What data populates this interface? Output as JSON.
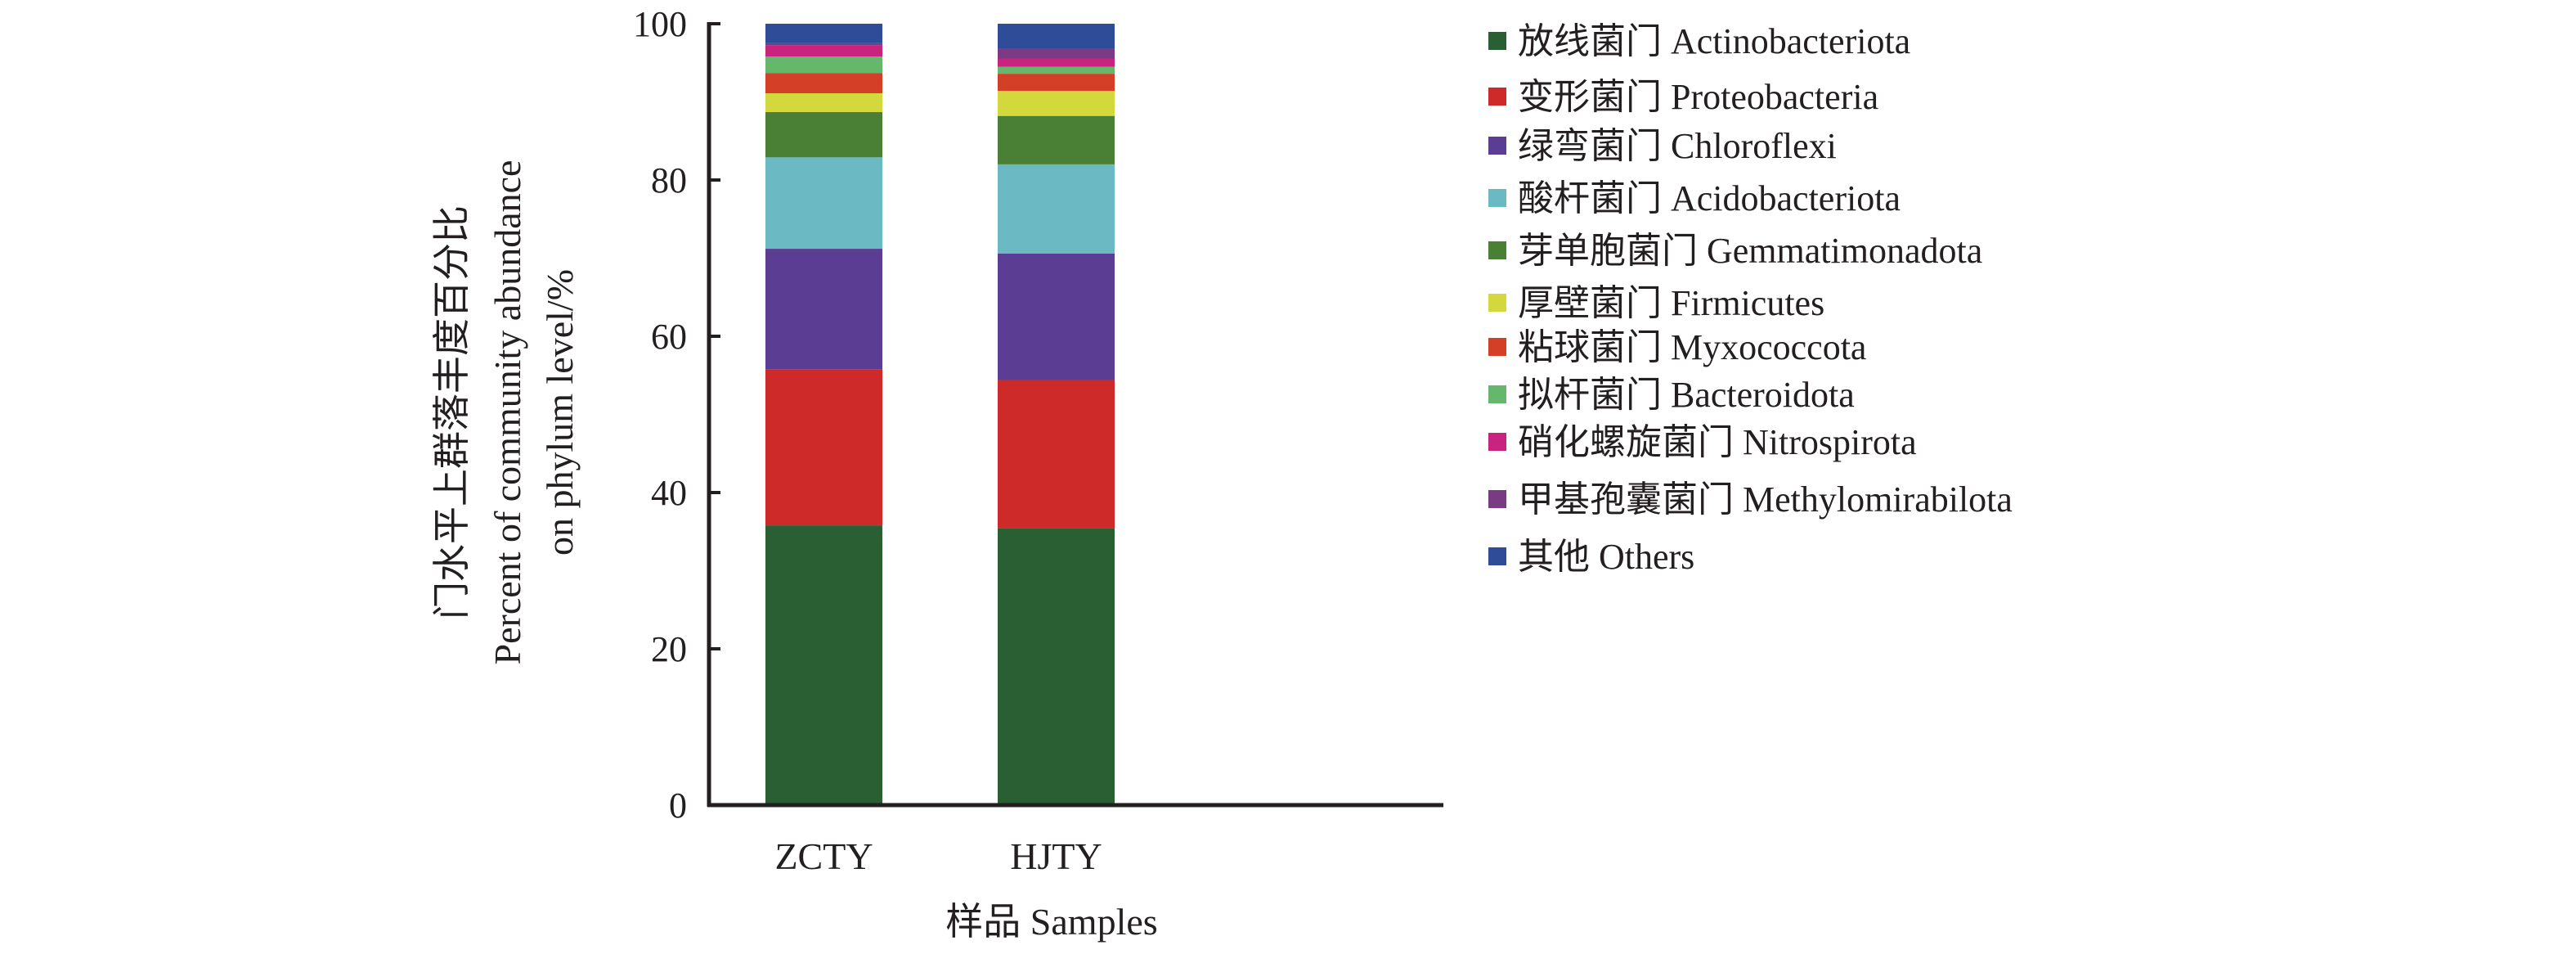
{
  "chart_data": {
    "type": "bar",
    "stacked": true,
    "title": "",
    "xlabel": "样品 Samples",
    "ylabel_line1": "门水平上群落丰度百分比",
    "ylabel_line2": "Percent of community abundance",
    "ylabel_line3": "on phylum level/%",
    "ylim": [
      0,
      100
    ],
    "yticks": [
      "0",
      "20",
      "40",
      "60",
      "80",
      "100"
    ],
    "categories": [
      "ZCTY",
      "HJTY"
    ],
    "legend_position": "right",
    "series": [
      {
        "name": "放线菌门 Actinobacteriota",
        "color": "#2a5e33",
        "values": [
          35.8,
          35.4
        ]
      },
      {
        "name": "变形菌门 Proteobacteria",
        "color": "#cf2a2a",
        "values": [
          20.0,
          19.0
        ]
      },
      {
        "name": "绿弯菌门 Chloroflexi",
        "color": "#5b3e93",
        "values": [
          15.4,
          16.2
        ]
      },
      {
        "name": "酸杆菌门 Acidobacteriota",
        "color": "#6bb9c2",
        "values": [
          11.7,
          11.4
        ]
      },
      {
        "name": "芽单胞菌门 Gemmatimonadota",
        "color": "#4a8036",
        "values": [
          5.8,
          6.2
        ]
      },
      {
        "name": "厚壁菌门 Firmicutes",
        "color": "#d3d83d",
        "values": [
          2.4,
          3.2
        ]
      },
      {
        "name": "粘球菌门 Myxococcota",
        "color": "#d33f27",
        "values": [
          2.6,
          2.2
        ]
      },
      {
        "name": "拟杆菌门 Bacteroidota",
        "color": "#65b76b",
        "values": [
          2.1,
          0.9
        ]
      },
      {
        "name": "硝化螺旋菌门 Nitrospirota",
        "color": "#c8237f",
        "values": [
          1.4,
          1.0
        ]
      },
      {
        "name": "甲基孢囊菌门 Methylomirabilota",
        "color": "#7a3b84",
        "values": [
          0.3,
          1.3
        ]
      },
      {
        "name": "其他 Others",
        "color": "#2f4c98",
        "values": [
          2.5,
          3.2
        ]
      }
    ]
  }
}
